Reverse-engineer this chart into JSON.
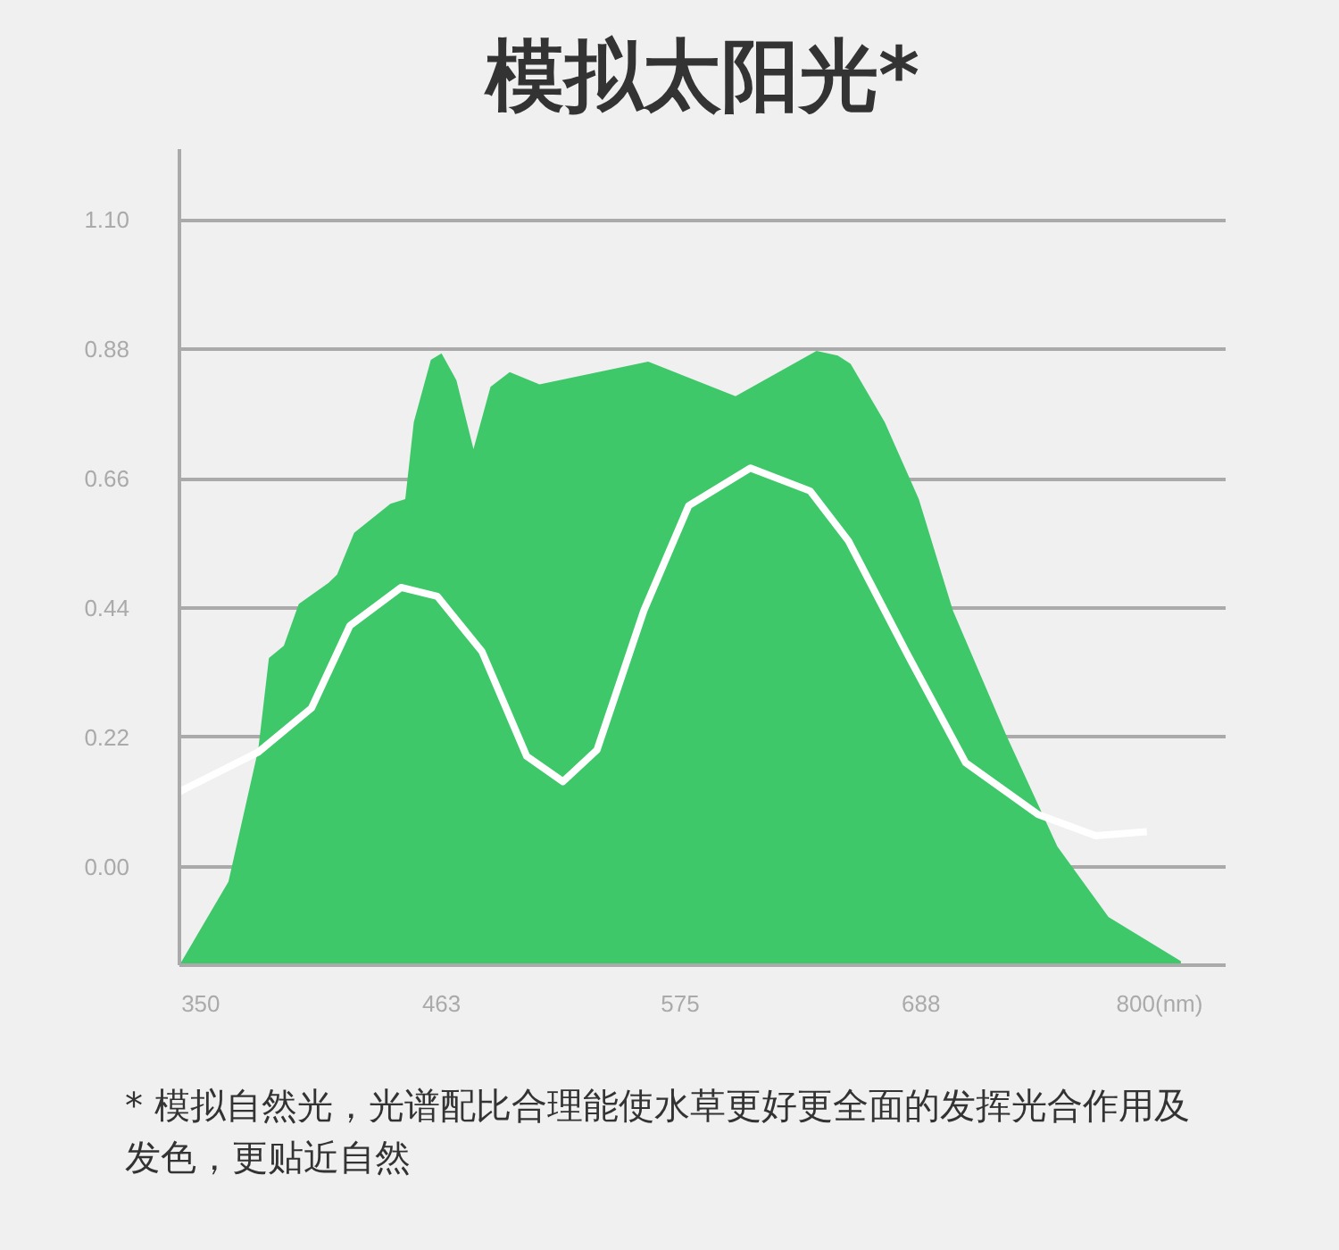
{
  "chart_data": {
    "type": "area",
    "title": "模拟太阳光*",
    "annotations": [
      "* 模拟自然光，光谱配比合理能使水草更好更全面的发挥光合作用及发色，更贴近自然"
    ],
    "xlim": [
      340,
      831
    ],
    "xticks": [
      350,
      463,
      575,
      688,
      {
        "value": 800,
        "label": "800(nm)"
      }
    ],
    "ylim": [
      -0.167,
      1.22
    ],
    "yticks": [
      {
        "value": 0,
        "label": "0.00"
      },
      0.22,
      0.44,
      0.66,
      0.88,
      {
        "value": 1.1,
        "label": "1.10"
      }
    ],
    "grid": "y",
    "series": [
      {
        "color": "#3ec86a",
        "x": [
          340,
          363,
          377,
          382,
          389,
          396,
          410,
          414,
          422,
          439,
          446,
          450,
          458,
          463,
          470,
          478,
          486,
          495,
          509,
          560,
          601,
          639,
          649,
          655,
          671,
          687,
          703,
          728,
          752,
          776,
          810
        ],
        "values": [
          -0.167,
          -0.025,
          0.2,
          0.355,
          0.376,
          0.447,
          0.483,
          0.497,
          0.568,
          0.617,
          0.625,
          0.756,
          0.862,
          0.873,
          0.827,
          0.71,
          0.816,
          0.841,
          0.82,
          0.859,
          0.8,
          0.877,
          0.869,
          0.855,
          0.756,
          0.625,
          0.436,
          0.224,
          0.035,
          -0.085,
          -0.16
        ]
      },
      {
        "type": "line",
        "color": "#ffffff",
        "x": [
          340,
          377,
          402,
          420,
          444,
          461,
          482,
          503,
          520,
          536,
          558,
          579,
          608,
          636,
          654,
          681,
          709,
          743,
          770,
          794
        ],
        "values": [
          0.128,
          0.195,
          0.27,
          0.41,
          0.475,
          0.46,
          0.366,
          0.188,
          0.145,
          0.199,
          0.436,
          0.614,
          0.678,
          0.639,
          0.554,
          0.366,
          0.177,
          0.089,
          0.053,
          0.06
        ]
      }
    ]
  }
}
